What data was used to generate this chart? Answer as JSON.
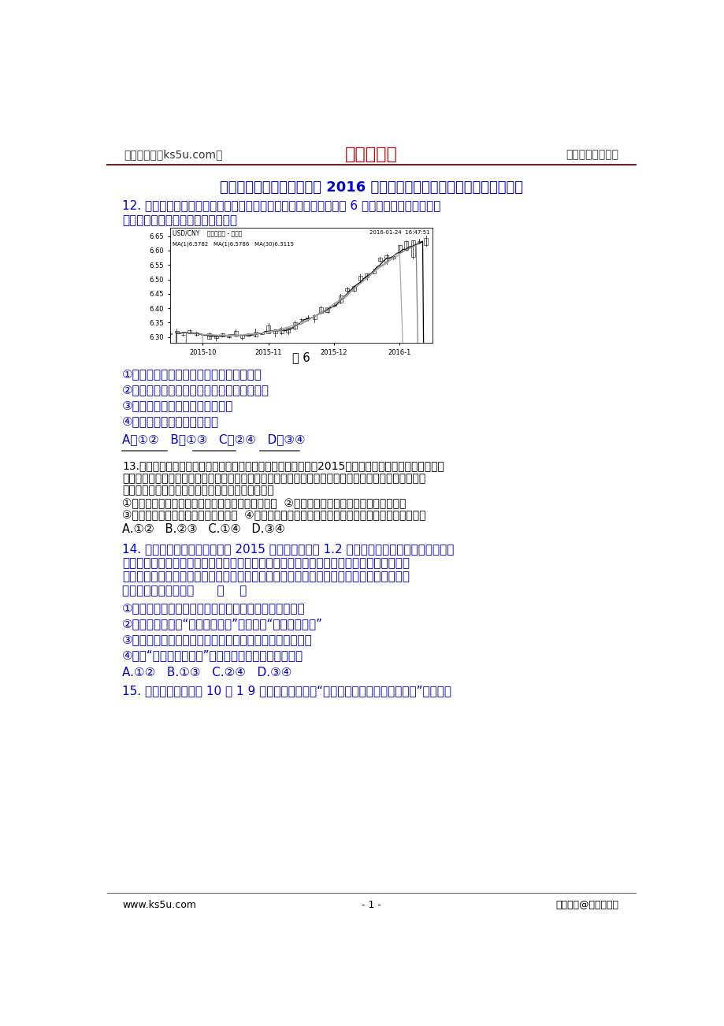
{
  "bg_color": "#ffffff",
  "header_left": "高考资源网（ks5u.com）",
  "header_center": "高考资源网",
  "header_center_color": "#cc0000",
  "header_right": "您身边的高考专家",
  "header_text_color": "#000000",
  "header_line_color": "#8B0000",
  "title": "湖北省重点高中联考协作体 2016 届高三下学期期中考试文科综合政治试题",
  "title_color": "#0000cc",
  "q12_line1": "12. 近期人民币对美元汇率出现一定幅度的波动，引起各方关注。图 6 为近四个月的波动情况。",
  "q12_line2": "这种形势下对我国的不利影响表现在",
  "q12_color": "#0000cc",
  "fig_caption": "图 6",
  "fig_caption_color": "#000000",
  "q12_options": [
    "①扩大中国出口商品的价格优势，增加出口",
    "②影响投资者信心，加剧在华境外资本外流风",
    "③削弱中国外汇储备的国际购买力",
    "④不利于我国企业走出去步伐"
  ],
  "q12_options_color": "#0000cc",
  "q12_answer": "A．①②   B．①③   C．②④   D．③④",
  "q12_answer_color": "#0000cc",
  "q13_text_color": "#000000",
  "q13_line1": "13.妈妈女友落水先救谁这个困扰同胞千年的问题有了标准答案！2015年司法部网站公布了今年国家司法",
  "q13_line2": "考试的参考答案：女友和妈妈同时遇险，先救妈是对的！法律专家的解释是，对妈妈不仅有道义上更有法",
  "q13_line3": "律上的救助义务。下列观点与专家的思路相符合的是",
  "q13_opt1": "①公民享受国家提供的各种服务，同时必须自觉纳税  ②先富起来的人必须帮助后富和回报社会",
  "q13_opt2": "③劳动者依据劳动法维护自身合法权益  ④公司大股东不能滥用股东权利，损害其他投资人的合法利益",
  "q13_ans": "A.①②   B.②③   C.①④   D.③④",
  "q13_ans_color": "#000000",
  "q14_color": "#0000cc",
  "q14_line1": "14. 中国商务部消息，中国游客 2015 年在境外消费约 1.2 万亿元，继续保持世界主要旅游消",
  "q14_line2": "费群体称号。对于中国游客而言，最热门的旅游目的地是日本、韩国、欧洲和美国。哪怕中",
  "q14_line3": "国的经济增长速度已经明显减缓，中国人从巴黎、伦敦和其他地方买回高档商品的兴头并没",
  "q14_line4": "有减弱。材料启示我们      （    ）",
  "q14_opt1": "①要适度扩大内需，抑制外需，增强经济持续增长的动力",
  "q14_opt2": "②宏观调控应该从『解决需求不足』全面转向『解决供给不足』",
  "q14_opt3": "③提高供给体系质量，培育有市场竞争力的新产业和新产品",
  "q14_opt4": "④加强『供给结构性改革』适应居民不断升级的消费结构",
  "q14_ans": "A.①②   B.①③   C.②④   D.③④",
  "q14_ans_color": "#0000cc",
  "q15_color": "#0000cc",
  "q15_line1": "15. 国务院总理李克强 10 月 1 9 日在北京出席首届『全国大众创业万众创新活动周』，并考察",
  "footer_left": "www.ks5u.com",
  "footer_center": "- 1 -",
  "footer_right": "版权所有@高考资源网",
  "footer_color": "#000000"
}
